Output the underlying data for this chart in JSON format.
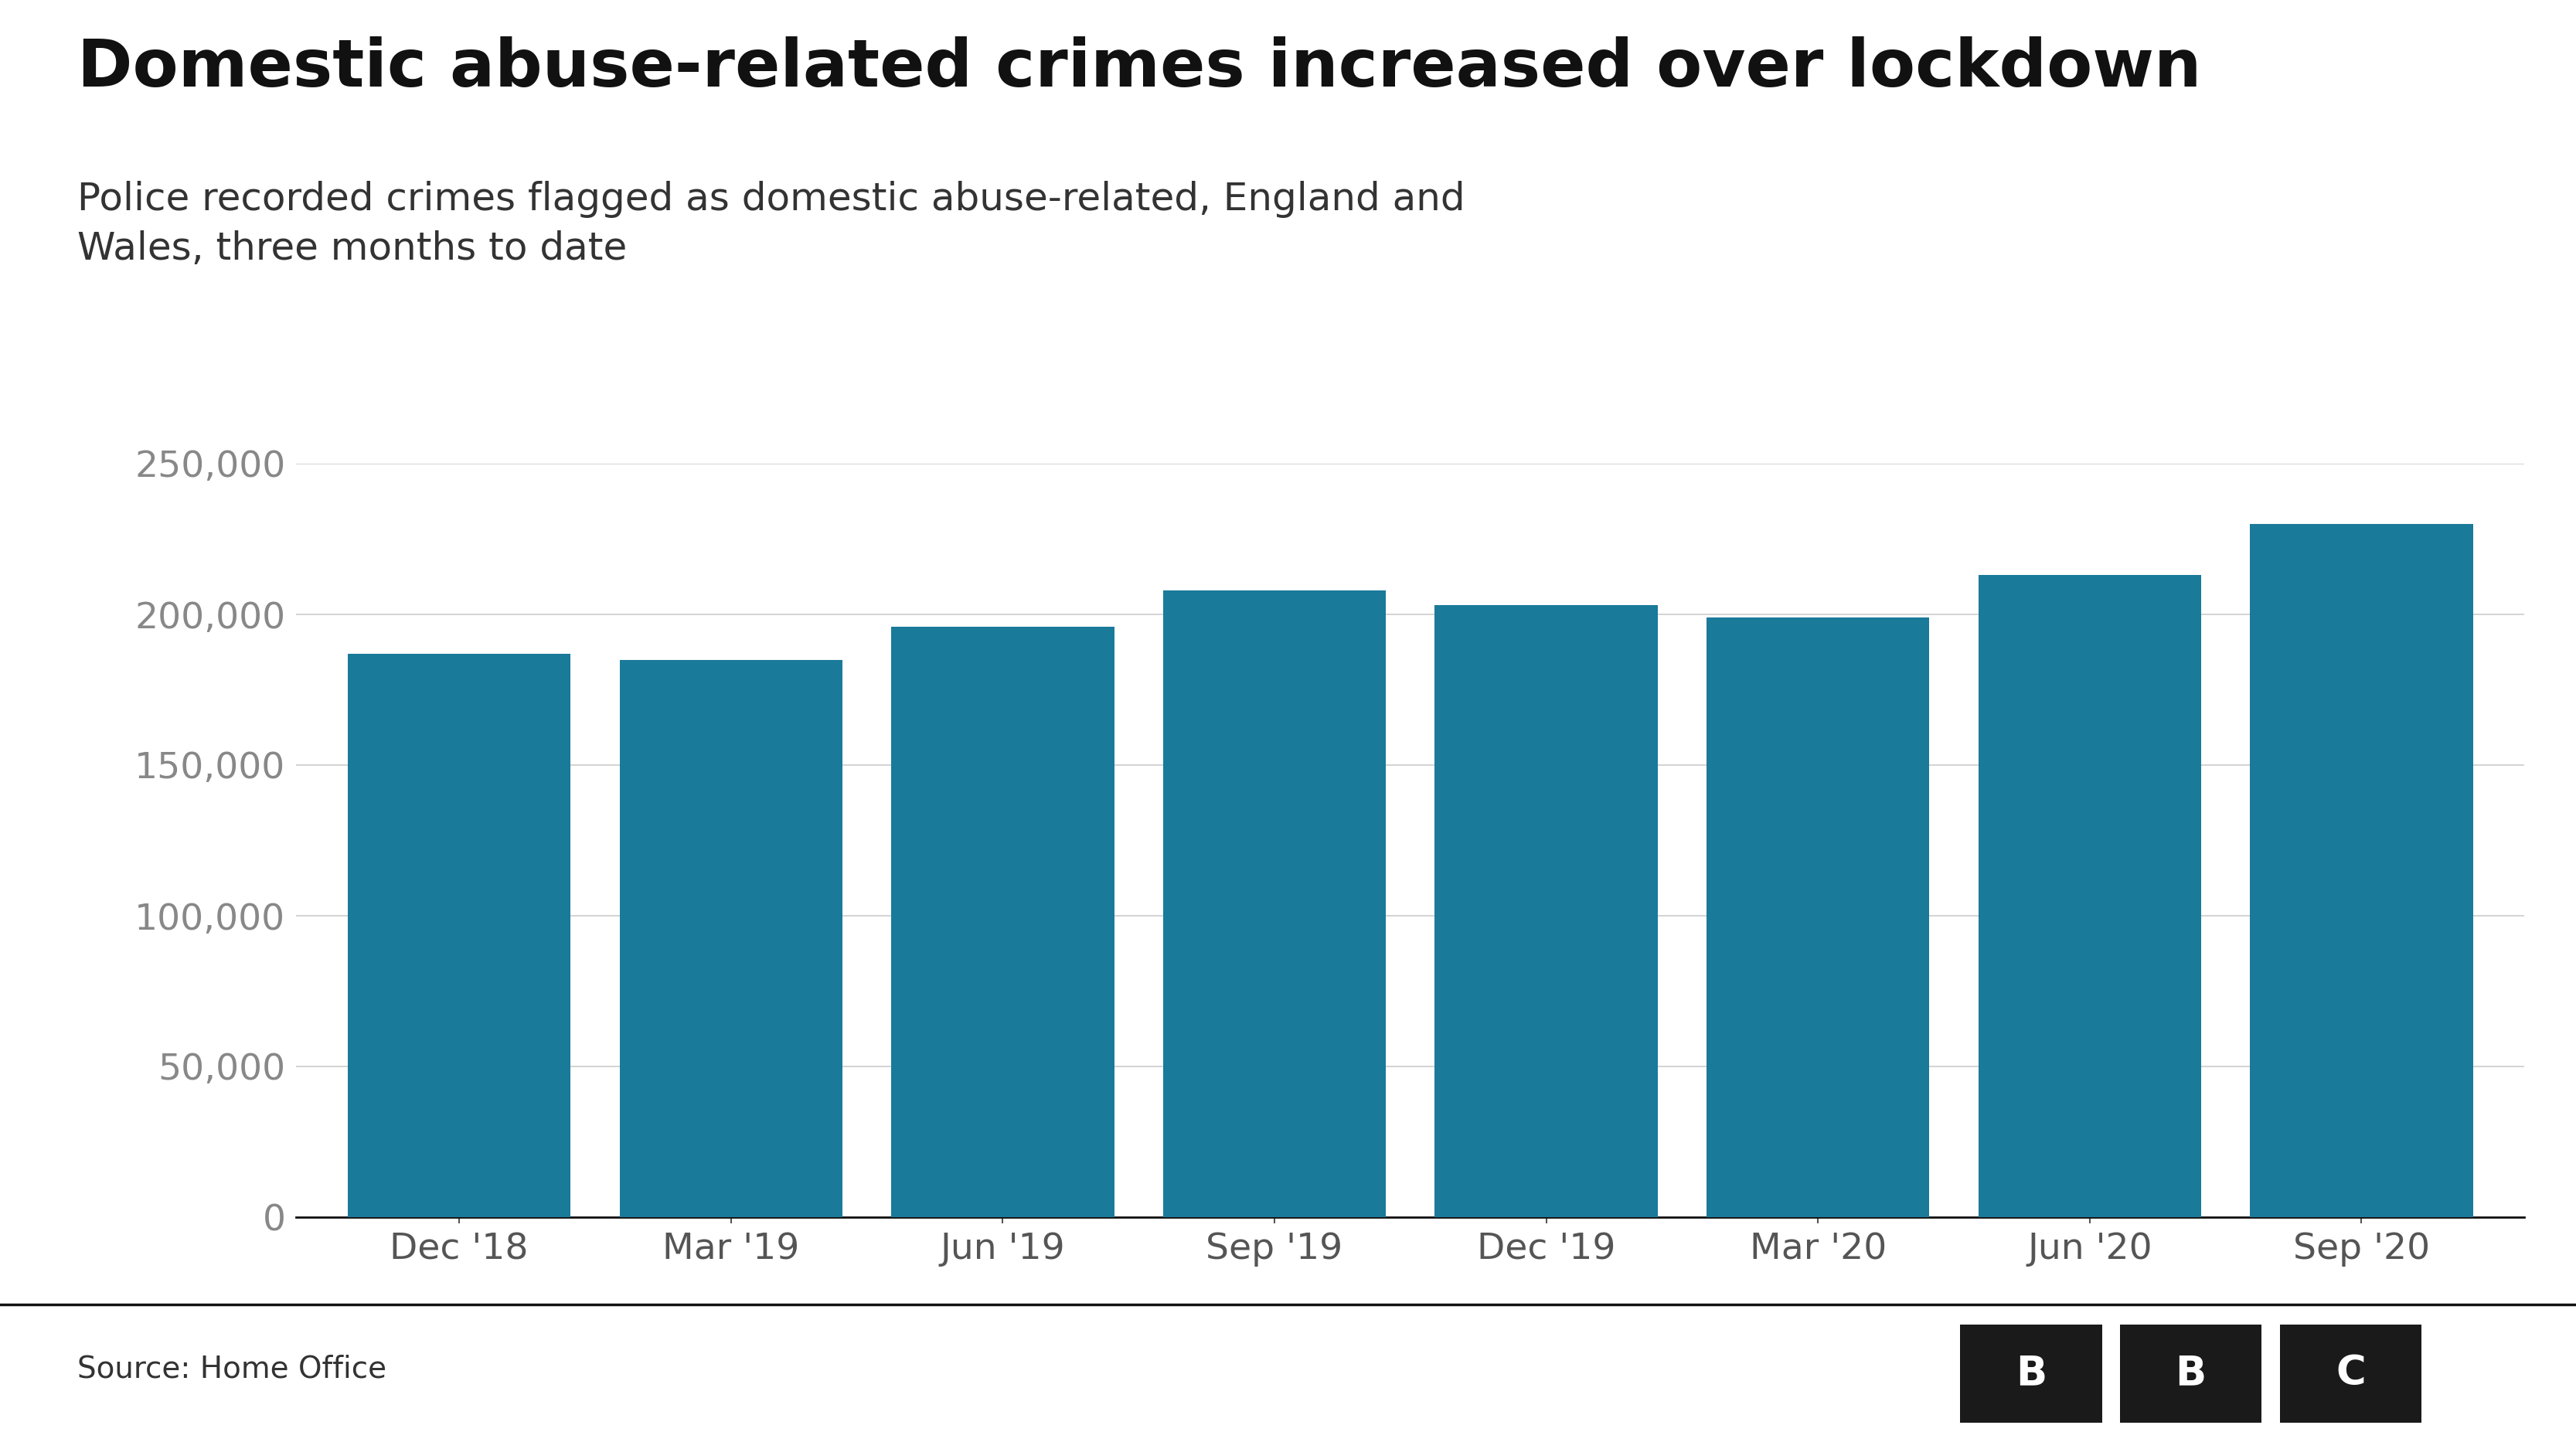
{
  "title": "Domestic abuse-related crimes increased over lockdown",
  "subtitle": "Police recorded crimes flagged as domestic abuse-related, England and\nWales, three months to date",
  "source": "Source: Home Office",
  "categories": [
    "Dec '18",
    "Mar '19",
    "Jun '19",
    "Sep '19",
    "Dec '19",
    "Mar '20",
    "Jun '20",
    "Sep '20"
  ],
  "values": [
    187000,
    185000,
    196000,
    208000,
    203000,
    199000,
    213000,
    230000
  ],
  "bar_color": "#1a7a9a",
  "background_color": "#ffffff",
  "ylim": [
    0,
    250000
  ],
  "yticks": [
    0,
    50000,
    100000,
    150000,
    200000,
    250000
  ],
  "title_fontsize": 62,
  "subtitle_fontsize": 36,
  "tick_fontsize": 34,
  "source_fontsize": 28,
  "bar_width": 0.82
}
